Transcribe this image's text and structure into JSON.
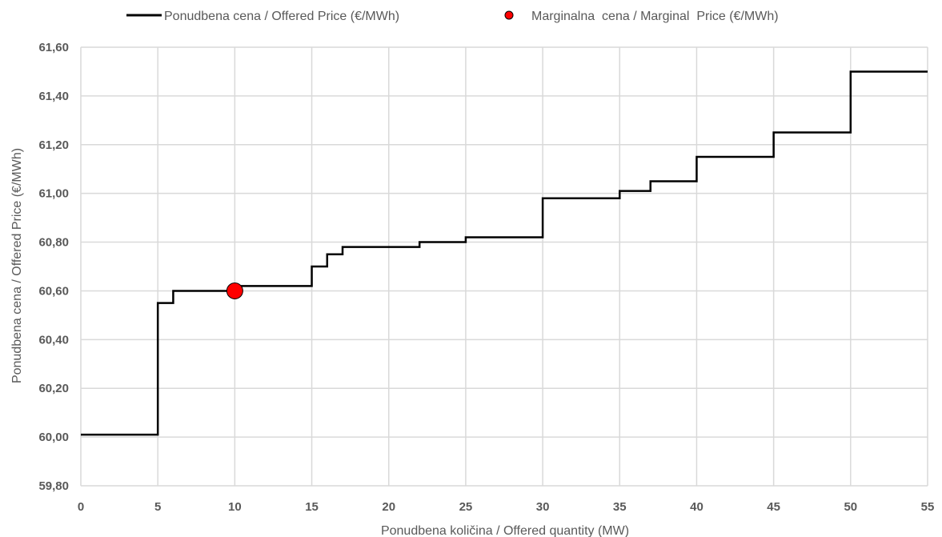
{
  "chart_data": {
    "type": "line",
    "xlabel": "Ponudbena količina / Offered quantity (MW)",
    "ylabel": "Ponudbena cena / Offered Price (€/MWh)",
    "xlim": [
      0,
      55
    ],
    "ylim": [
      59.8,
      61.6
    ],
    "x_ticks": [
      0,
      5,
      10,
      15,
      20,
      25,
      30,
      35,
      40,
      45,
      50,
      55
    ],
    "y_ticks": [
      59.8,
      60.0,
      60.2,
      60.4,
      60.6,
      60.8,
      61.0,
      61.2,
      61.4,
      61.6
    ],
    "x_tick_labels": [
      "0",
      "5",
      "10",
      "15",
      "20",
      "25",
      "30",
      "35",
      "40",
      "45",
      "50",
      "55"
    ],
    "y_tick_labels": [
      "59,80",
      "60,00",
      "60,20",
      "60,40",
      "60,60",
      "60,80",
      "61,00",
      "61,20",
      "61,40",
      "61,60"
    ],
    "grid": true,
    "legend_position": "top",
    "series": [
      {
        "name": "Ponudbena cena / Offered Price (€/MWh)",
        "kind": "step",
        "color": "#000000",
        "steps": [
          {
            "x_start": 0,
            "x_end": 5,
            "y": 60.01
          },
          {
            "x_start": 5,
            "x_end": 6,
            "y": 60.55
          },
          {
            "x_start": 6,
            "x_end": 10,
            "y": 60.6
          },
          {
            "x_start": 10,
            "x_end": 15,
            "y": 60.62
          },
          {
            "x_start": 15,
            "x_end": 16,
            "y": 60.7
          },
          {
            "x_start": 16,
            "x_end": 17,
            "y": 60.75
          },
          {
            "x_start": 17,
            "x_end": 22,
            "y": 60.78
          },
          {
            "x_start": 22,
            "x_end": 25,
            "y": 60.8
          },
          {
            "x_start": 25,
            "x_end": 30,
            "y": 60.82
          },
          {
            "x_start": 30,
            "x_end": 35,
            "y": 60.98
          },
          {
            "x_start": 35,
            "x_end": 37,
            "y": 61.01
          },
          {
            "x_start": 37,
            "x_end": 40,
            "y": 61.05
          },
          {
            "x_start": 40,
            "x_end": 45,
            "y": 61.15
          },
          {
            "x_start": 45,
            "x_end": 50,
            "y": 61.25
          },
          {
            "x_start": 50,
            "x_end": 55,
            "y": 61.5
          }
        ]
      },
      {
        "name": "Marginalna  cena / Marginal  Price (€/MWh)",
        "kind": "scatter",
        "color": "#ff0000",
        "points": [
          {
            "x": 10,
            "y": 60.6
          }
        ]
      }
    ]
  }
}
